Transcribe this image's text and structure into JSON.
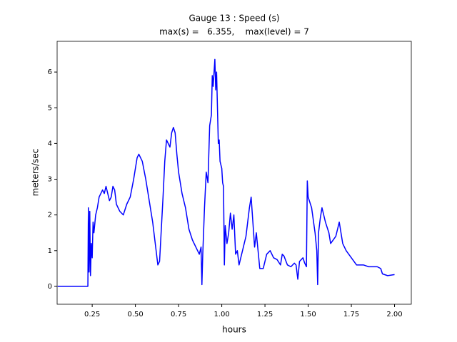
{
  "chart_data": {
    "type": "line",
    "title": "Gauge 13 : Speed (s)",
    "subtitle": "max(s) =   6.355,    max(level) = 7",
    "xlabel": "hours",
    "ylabel": "meters/sec",
    "xlim": [
      0.047,
      2.097
    ],
    "ylim": [
      -0.5,
      6.86
    ],
    "xticks": [
      0.25,
      {
        "value": 0.5,
        "label": "0.50"
      },
      0.75,
      {
        "value": 1,
        "label": "1.00"
      },
      1.25,
      {
        "value": 1.5,
        "label": "1.50"
      },
      1.75,
      {
        "value": 2,
        "label": "2.00"
      }
    ],
    "yticks": [
      0,
      1,
      2,
      3,
      4,
      5,
      6
    ],
    "grid": false,
    "x": [
      0.05,
      0.225,
      0.228,
      0.232,
      0.236,
      0.24,
      0.245,
      0.25,
      0.255,
      0.26,
      0.27,
      0.28,
      0.29,
      0.3,
      0.31,
      0.32,
      0.33,
      0.34,
      0.35,
      0.36,
      0.37,
      0.38,
      0.39,
      0.41,
      0.43,
      0.45,
      0.47,
      0.49,
      0.51,
      0.52,
      0.54,
      0.56,
      0.58,
      0.6,
      0.62,
      0.63,
      0.64,
      0.66,
      0.67,
      0.68,
      0.7,
      0.71,
      0.72,
      0.73,
      0.74,
      0.75,
      0.77,
      0.79,
      0.81,
      0.83,
      0.85,
      0.87,
      0.88,
      0.885,
      0.89,
      0.9,
      0.91,
      0.92,
      0.93,
      0.94,
      0.945,
      0.95,
      0.96,
      0.965,
      0.97,
      0.975,
      0.98,
      0.985,
      0.99,
      1.0,
      1.005,
      1.01,
      1.015,
      1.02,
      1.03,
      1.04,
      1.05,
      1.06,
      1.07,
      1.08,
      1.09,
      1.1,
      1.12,
      1.14,
      1.16,
      1.17,
      1.18,
      1.19,
      1.2,
      1.21,
      1.22,
      1.24,
      1.26,
      1.28,
      1.3,
      1.32,
      1.34,
      1.35,
      1.36,
      1.38,
      1.4,
      1.42,
      1.43,
      1.44,
      1.45,
      1.47,
      1.48,
      1.49,
      1.495,
      1.5,
      1.52,
      1.54,
      1.55,
      1.555,
      1.56,
      1.57,
      1.58,
      1.6,
      1.62,
      1.63,
      1.66,
      1.68,
      1.7,
      1.72,
      1.75,
      1.78,
      1.82,
      1.85,
      1.9,
      1.92,
      1.93,
      1.96,
      2.0
    ],
    "series": [
      {
        "name": "speed",
        "color": "#0000ff",
        "values": [
          0,
          0,
          2.2,
          0.4,
          2.1,
          0.3,
          1.2,
          0.8,
          1.8,
          1.5,
          2.0,
          2.2,
          2.5,
          2.6,
          2.7,
          2.6,
          2.8,
          2.6,
          2.4,
          2.5,
          2.8,
          2.7,
          2.3,
          2.1,
          2.0,
          2.3,
          2.5,
          3.0,
          3.6,
          3.7,
          3.5,
          3.0,
          2.4,
          1.8,
          1.0,
          0.6,
          0.7,
          2.5,
          3.5,
          4.1,
          3.9,
          4.3,
          4.45,
          4.3,
          3.7,
          3.2,
          2.6,
          2.2,
          1.6,
          1.3,
          1.1,
          0.9,
          1.1,
          0.05,
          0.9,
          2.2,
          3.2,
          2.9,
          4.5,
          4.8,
          5.9,
          5.6,
          6.355,
          5.5,
          6.0,
          5.0,
          4.0,
          4.1,
          3.5,
          3.3,
          2.9,
          2.8,
          0.6,
          1.7,
          1.2,
          1.5,
          2.05,
          1.6,
          2.0,
          0.9,
          1.0,
          0.6,
          1.0,
          1.4,
          2.2,
          2.5,
          1.8,
          1.1,
          1.5,
          1.0,
          0.5,
          0.5,
          0.9,
          1.0,
          0.8,
          0.75,
          0.6,
          0.9,
          0.85,
          0.6,
          0.55,
          0.65,
          0.6,
          0.2,
          0.7,
          0.8,
          0.65,
          0.55,
          2.95,
          2.5,
          2.2,
          1.5,
          1.0,
          0.05,
          1.5,
          1.9,
          2.2,
          1.8,
          1.5,
          1.2,
          1.4,
          1.8,
          1.2,
          1.0,
          0.8,
          0.6,
          0.6,
          0.55,
          0.55,
          0.5,
          0.35,
          0.3,
          0.33
        ]
      }
    ]
  }
}
